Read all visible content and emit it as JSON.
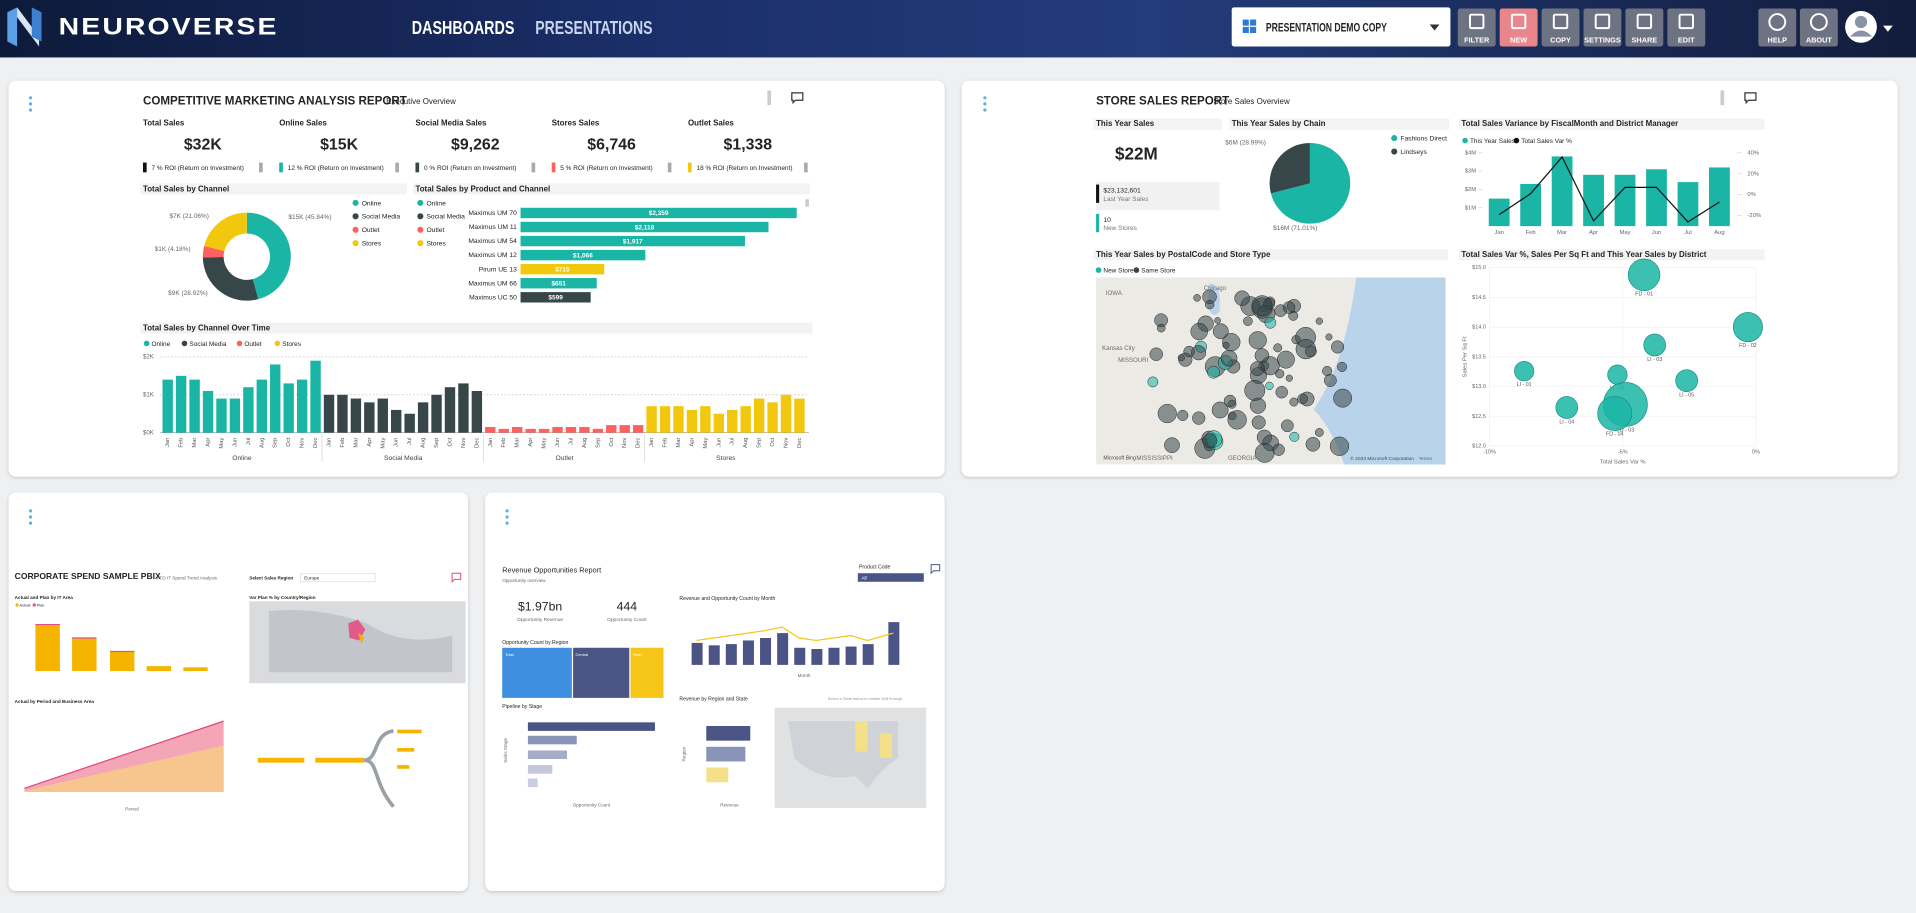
{
  "header": {
    "brand": "NEUROVERSE",
    "nav": [
      "DASHBOARDS",
      "PRESENTATIONS"
    ],
    "presentation": "PRESENTATION DEMO COPY",
    "tools": [
      "FILTER",
      "NEW",
      "COPY",
      "SETTINGS",
      "SHARE",
      "EDIT"
    ],
    "help": [
      "HELP",
      "ABOUT"
    ]
  },
  "marketing": {
    "title": "COMPETITIVE MARKETING ANALYSIS REPORT",
    "subtitle": "Executive Overview",
    "kpis": [
      {
        "label": "Total Sales",
        "value": "$32K",
        "roi": "7 % ROI (Return on Investment)"
      },
      {
        "label": "Online Sales",
        "value": "$15K",
        "roi": "12 % ROI (Return on Investment)"
      },
      {
        "label": "Social Media Sales",
        "value": "$9,262",
        "roi": "0 % ROI (Return on Investment)"
      },
      {
        "label": "Stores Sales",
        "value": "$6,746",
        "roi": "5 % ROI (Return on Investment)"
      },
      {
        "label": "Outlet Sales",
        "value": "$1,338",
        "roi": "18 % ROI (Return on Investment)"
      }
    ],
    "channel": {
      "title": "Total Sales by Channel",
      "legend": [
        "Online",
        "Social Media",
        "Outlet",
        "Stores"
      ],
      "colors": [
        "#1ab5a5",
        "#374649",
        "#fd625e",
        "#f2c80f"
      ],
      "values": [
        45.84,
        28.92,
        4.18,
        21.06
      ],
      "value_labels": [
        "$15K (45.84%)",
        "$9K (28.92%)",
        "$1K (4.18%)",
        "$7K (21.06%)"
      ]
    },
    "product": {
      "title": "Total Sales by Product and Channel",
      "legend": [
        "Online",
        "Social Media",
        "Outlet",
        "Stores"
      ],
      "categories": [
        "Maximus UM 70",
        "Maximus UM 11",
        "Maximus UM 54",
        "Maximus UM 12",
        "Pirum UE 13",
        "Maximus UM 66",
        "Maximus UC 50"
      ],
      "values": [
        2359,
        2118,
        1917,
        1066,
        715,
        651,
        599
      ],
      "value_labels": [
        "$2,359",
        "$2,118",
        "$1,917",
        "$1,066",
        "$715",
        "$651",
        "$599"
      ],
      "colors": [
        "#1ab5a5",
        "#1ab5a5",
        "#1ab5a5",
        "#1ab5a5",
        "#f2c80f",
        "#1ab5a5",
        "#374649"
      ]
    },
    "time": {
      "title": "Total Sales by Channel Over Time",
      "yticks": [
        {
          "value": 0,
          "label": "$0K"
        },
        {
          "value": 1000,
          "label": "$1K"
        },
        {
          "value": 2000,
          "label": "$2K"
        }
      ],
      "ylim": [
        0,
        2000
      ],
      "months": [
        "Jan",
        "Feb",
        "Mar",
        "Apr",
        "May",
        "Jun",
        "Jul",
        "Aug",
        "Sep",
        "Oct",
        "Nov",
        "Dec"
      ],
      "series": [
        {
          "name": "Online",
          "color": "#1ab5a5",
          "values": [
            1400,
            1500,
            1400,
            1100,
            900,
            900,
            1200,
            1400,
            1800,
            1300,
            1400,
            1900
          ]
        },
        {
          "name": "Social Media",
          "color": "#374649",
          "values": [
            1000,
            1000,
            900,
            800,
            900,
            600,
            500,
            800,
            1000,
            1200,
            1300,
            1100
          ]
        },
        {
          "name": "Outlet",
          "color": "#fd625e",
          "values": [
            150,
            100,
            150,
            100,
            100,
            150,
            150,
            150,
            100,
            200,
            200,
            200
          ]
        },
        {
          "name": "Stores",
          "color": "#f2c80f",
          "values": [
            700,
            700,
            700,
            600,
            700,
            500,
            600,
            700,
            900,
            800,
            1000,
            900
          ]
        }
      ]
    }
  },
  "store": {
    "title": "STORE SALES REPORT",
    "subtitle": "Store Sales Overview",
    "this_year": {
      "label": "This Year Sales",
      "value": "$22M"
    },
    "last_year": {
      "value": "$23,132,601",
      "label": "Last Year Sales"
    },
    "new_stores": {
      "value": 10,
      "label": "New Stores"
    },
    "chain": {
      "title": "This Year Sales by Chain",
      "legend": [
        "Fashions Direct",
        "Lindseys"
      ],
      "colors": [
        "#1ab5a5",
        "#374649"
      ],
      "values": [
        71.01,
        28.99
      ],
      "value_labels": [
        "$16M (71.01%)",
        "$6M (28.99%)"
      ]
    },
    "variance": {
      "title": "Total Sales Variance by FiscalMonth and District Manager",
      "legend": [
        "This Year Sales",
        "Total Sales Var %"
      ],
      "months": [
        "Jan",
        "Feb",
        "Mar",
        "Apr",
        "May",
        "Jun",
        "Jul",
        "Aug"
      ],
      "sales": [
        1.5,
        2.3,
        3.8,
        2.8,
        2.8,
        3.1,
        2.4,
        3.2
      ],
      "var_pct": [
        -19,
        1,
        36,
        -25,
        7,
        7,
        -26,
        -7
      ],
      "ylim": [
        0,
        4
      ],
      "yticks": [
        {
          "value": 1,
          "label": "$1M"
        },
        {
          "value": 2,
          "label": "$2M"
        },
        {
          "value": 3,
          "label": "$3M"
        },
        {
          "value": 4,
          "label": "$4M"
        }
      ],
      "y2lim": [
        -30,
        40
      ],
      "y2ticks": [
        {
          "value": -20,
          "label": "-20%"
        },
        {
          "value": 0,
          "label": "0%"
        },
        {
          "value": 20,
          "label": "20%"
        },
        {
          "value": 40,
          "label": "40%"
        }
      ]
    },
    "map": {
      "title": "This Year Sales by PostalCode and Store Type",
      "legend": [
        "New Store",
        "Same Store"
      ],
      "places": [
        "Chicago",
        "Kansas City",
        "MISSOURI",
        "IOWA",
        "GEORGIA",
        "MISSISSIPPI"
      ],
      "bing": "Microsoft Bing",
      "copyright": "© 2023 Microsoft Corporation",
      "terms": "Terms"
    },
    "scatter": {
      "title": "Total Sales Var %, Sales Per Sq Ft and This Year Sales by District",
      "xlabel": "Total Sales Var %",
      "ylabel": "Sales Per Sq Ft",
      "xlim": [
        -10,
        0
      ],
      "ylim": [
        12,
        15
      ],
      "xticks": [
        {
          "value": -10,
          "label": "-10%"
        },
        {
          "value": -5,
          "label": "-5%"
        },
        {
          "value": 0,
          "label": "0%"
        }
      ],
      "yticks": [
        {
          "value": 12,
          "label": "$12.0"
        },
        {
          "value": 12.5,
          "label": "$12.5"
        },
        {
          "value": 13,
          "label": "$13.0"
        },
        {
          "value": 13.5,
          "label": "$13.5"
        },
        {
          "value": 14,
          "label": "$14.0"
        },
        {
          "value": 14.5,
          "label": "$14.5"
        },
        {
          "value": 15,
          "label": "$15.0"
        }
      ],
      "points": [
        "FD - 01",
        "FD - 02",
        "LI - 01",
        "LI - 02",
        "LI - 03",
        "LI - 04",
        "LI - 05",
        "FD - 03",
        "FD - 04"
      ],
      "x": [
        -4.2,
        -0.3,
        -8.7,
        -5.2,
        -3.8,
        -7.1,
        -2.6,
        -4.9,
        -5.3
      ],
      "y": [
        14.88,
        14,
        13.26,
        13.2,
        13.7,
        12.65,
        13.1,
        12.7,
        12.55
      ],
      "sizes": [
        13,
        12,
        8,
        8,
        9,
        9,
        9,
        18,
        14
      ]
    }
  },
  "spend": {
    "title": "CORPORATE SPEND SAMPLE PBIX",
    "subtitle": "YTD IT Spend Trend Analysis",
    "filter": "Select Sales Region",
    "filter_value": "Europe",
    "sections": [
      "Actual and Plan by IT Area",
      "Var Plan % by Country/Region",
      "Actual by Period and Business Area"
    ],
    "legend": [
      "Actual",
      "Plan"
    ],
    "axis": "Period"
  },
  "revenue": {
    "title": "Revenue Opportunities Report",
    "subtitle": "Opportunity overview",
    "filter": "Product Code",
    "filter_value": "All",
    "kpis": [
      {
        "value": "$1.97bn",
        "label": "Opportunity Revenue"
      },
      {
        "value": "444",
        "label": "Opportunity Count"
      }
    ],
    "sections": [
      "Revenue and Opportunity Count by Month",
      "Opportunity Count by Region",
      "Pipeline by Stage",
      "Revenue by Region and State"
    ],
    "regions": [
      "East",
      "Central",
      "West"
    ],
    "axes": [
      "Month",
      "Opportunity Count",
      "Revenue",
      "Sales Stage",
      "Region"
    ],
    "hint": "Select a State below to enable Drill through"
  }
}
